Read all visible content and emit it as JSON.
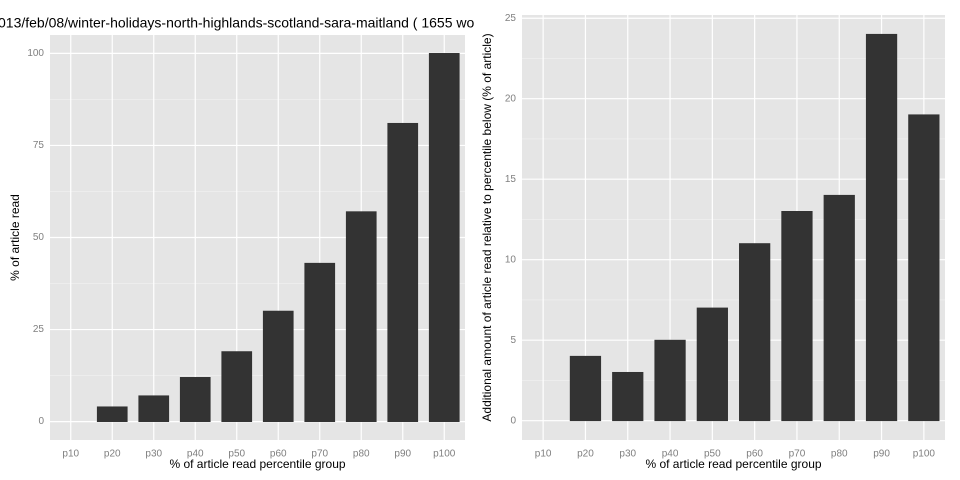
{
  "chart_data": [
    {
      "type": "bar",
      "title": "013/feb/08/winter-holidays-north-highlands-scotland-sara-maitland ( 1655 wo",
      "x_label": "% of article read percentile group",
      "y_label": "% of article read",
      "categories": [
        "p10",
        "p20",
        "p30",
        "p40",
        "p50",
        "p60",
        "p70",
        "p80",
        "p90",
        "p100"
      ],
      "values": [
        0,
        4,
        7,
        12,
        19,
        30,
        43,
        57,
        81,
        100
      ],
      "color": "#333333",
      "ylim": [
        -5,
        105
      ],
      "yticks": [
        0,
        25,
        50,
        75,
        100
      ],
      "grid": true
    },
    {
      "type": "bar",
      "x_label": "% of article read percentile group",
      "y_label": "Additional amount of article read relative to percentile below (% of article)",
      "categories": [
        "p10",
        "p20",
        "p30",
        "p40",
        "p50",
        "p60",
        "p70",
        "p80",
        "p90",
        "p100"
      ],
      "values": [
        0,
        4,
        3,
        5,
        7,
        11,
        13,
        14,
        24,
        19
      ],
      "color": "#333333",
      "ylim": [
        -1.2,
        25.2
      ],
      "yticks": [
        0,
        5,
        10,
        15,
        20,
        25
      ],
      "grid": true
    }
  ]
}
